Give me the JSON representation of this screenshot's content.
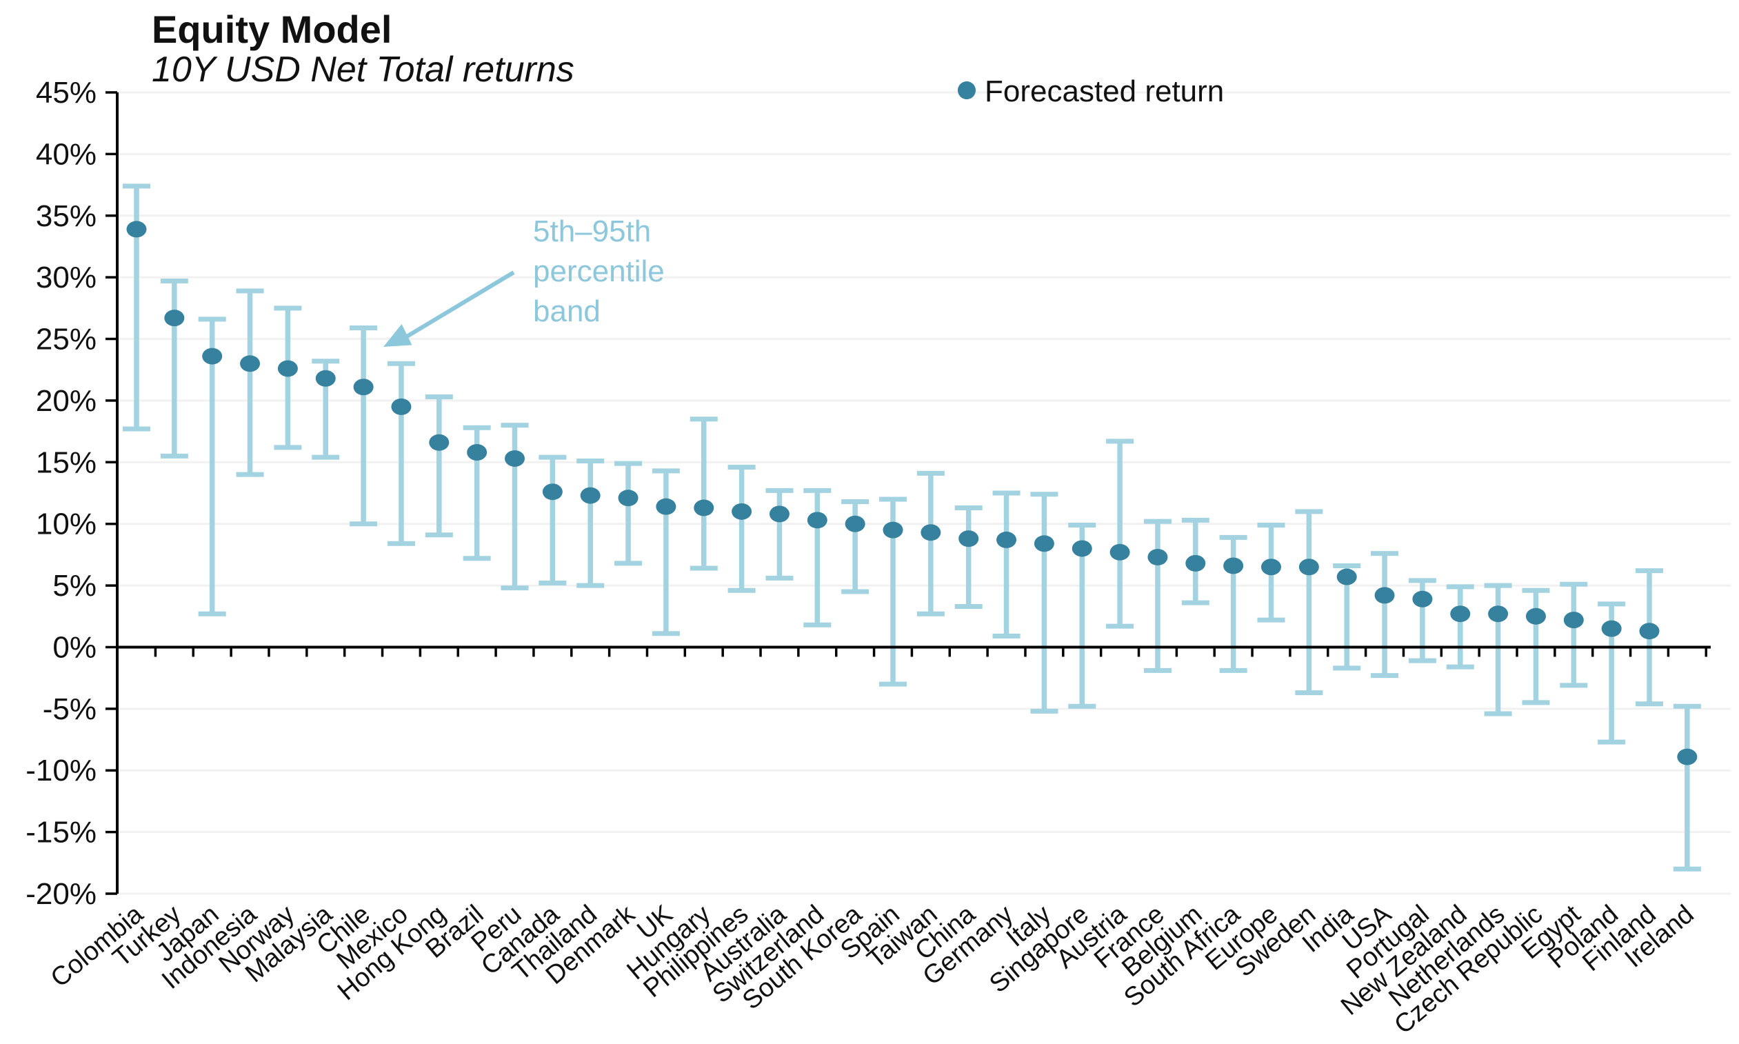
{
  "chart_data": {
    "type": "scatter",
    "title": "Equity Model",
    "subtitle": "10Y USD Net Total returns",
    "legend": {
      "label": "Forecasted return"
    },
    "annotation": {
      "lines": [
        "5th–95th",
        "percentile",
        "band"
      ]
    },
    "ylim": [
      -20,
      45
    ],
    "ytick_step": 5,
    "ytick_suffix": "%",
    "grid": true,
    "legend_position": "top-center",
    "colors": {
      "dot": "#35819e",
      "band": "#a3d2e1",
      "annotation": "#8cc7db",
      "gridline": "#f1f1f1",
      "axis": "#000000",
      "text": "#111111"
    },
    "points": [
      {
        "label": "Colombia",
        "value": 33.9,
        "low": 17.7,
        "high": 37.4
      },
      {
        "label": "Turkey",
        "value": 26.7,
        "low": 15.5,
        "high": 29.7
      },
      {
        "label": "Japan",
        "value": 23.6,
        "low": 2.7,
        "high": 26.6
      },
      {
        "label": "Indonesia",
        "value": 23.0,
        "low": 14.0,
        "high": 28.9
      },
      {
        "label": "Norway",
        "value": 22.6,
        "low": 16.2,
        "high": 27.5
      },
      {
        "label": "Malaysia",
        "value": 21.8,
        "low": 15.4,
        "high": 23.2
      },
      {
        "label": "Chile",
        "value": 21.1,
        "low": 10.0,
        "high": 25.9
      },
      {
        "label": "Mexico",
        "value": 19.5,
        "low": 8.4,
        "high": 23.0
      },
      {
        "label": "Hong Kong",
        "value": 16.6,
        "low": 9.1,
        "high": 20.3
      },
      {
        "label": "Brazil",
        "value": 15.8,
        "low": 7.2,
        "high": 17.8
      },
      {
        "label": "Peru",
        "value": 15.3,
        "low": 4.8,
        "high": 18.0
      },
      {
        "label": "Canada",
        "value": 12.6,
        "low": 5.2,
        "high": 15.4
      },
      {
        "label": "Thailand",
        "value": 12.3,
        "low": 5.0,
        "high": 15.1
      },
      {
        "label": "Denmark",
        "value": 12.1,
        "low": 6.8,
        "high": 14.9
      },
      {
        "label": "UK",
        "value": 11.4,
        "low": 1.1,
        "high": 14.3
      },
      {
        "label": "Hungary",
        "value": 11.3,
        "low": 6.4,
        "high": 18.5
      },
      {
        "label": "Philippines",
        "value": 11.0,
        "low": 4.6,
        "high": 14.6
      },
      {
        "label": "Australia",
        "value": 10.8,
        "low": 5.6,
        "high": 12.7
      },
      {
        "label": "Switzerland",
        "value": 10.3,
        "low": 1.8,
        "high": 12.7
      },
      {
        "label": "South Korea",
        "value": 10.0,
        "low": 4.5,
        "high": 11.8
      },
      {
        "label": "Spain",
        "value": 9.5,
        "low": -3.0,
        "high": 12.0
      },
      {
        "label": "Taiwan",
        "value": 9.3,
        "low": 2.7,
        "high": 14.1
      },
      {
        "label": "China",
        "value": 8.8,
        "low": 3.3,
        "high": 11.3
      },
      {
        "label": "Germany",
        "value": 8.7,
        "low": 0.9,
        "high": 12.5
      },
      {
        "label": "Italy",
        "value": 8.4,
        "low": -5.2,
        "high": 12.4
      },
      {
        "label": "Singapore",
        "value": 8.0,
        "low": -4.8,
        "high": 9.9
      },
      {
        "label": "Austria",
        "value": 7.7,
        "low": 1.7,
        "high": 16.7
      },
      {
        "label": "France",
        "value": 7.3,
        "low": -1.9,
        "high": 10.2
      },
      {
        "label": "Belgium",
        "value": 6.8,
        "low": 3.6,
        "high": 10.3
      },
      {
        "label": "South Africa",
        "value": 6.6,
        "low": -1.9,
        "high": 8.9
      },
      {
        "label": "Europe",
        "value": 6.5,
        "low": 2.2,
        "high": 9.9
      },
      {
        "label": "Sweden",
        "value": 6.5,
        "low": -3.7,
        "high": 11.0
      },
      {
        "label": "India",
        "value": 5.7,
        "low": -1.7,
        "high": 6.6
      },
      {
        "label": "USA",
        "value": 4.2,
        "low": -2.3,
        "high": 7.6
      },
      {
        "label": "Portugal",
        "value": 3.9,
        "low": -1.1,
        "high": 5.4
      },
      {
        "label": "New Zealand",
        "value": 2.7,
        "low": -1.6,
        "high": 4.9
      },
      {
        "label": "Netherlands",
        "value": 2.7,
        "low": -5.4,
        "high": 5.0
      },
      {
        "label": "Czech Republic",
        "value": 2.5,
        "low": -4.5,
        "high": 4.6
      },
      {
        "label": "Egypt",
        "value": 2.2,
        "low": -3.1,
        "high": 5.1
      },
      {
        "label": "Poland",
        "value": 1.5,
        "low": -7.7,
        "high": 3.5
      },
      {
        "label": "Finland",
        "value": 1.3,
        "low": -4.6,
        "high": 6.2
      },
      {
        "label": "Ireland",
        "value": -8.9,
        "low": -18.0,
        "high": -4.8
      }
    ]
  }
}
